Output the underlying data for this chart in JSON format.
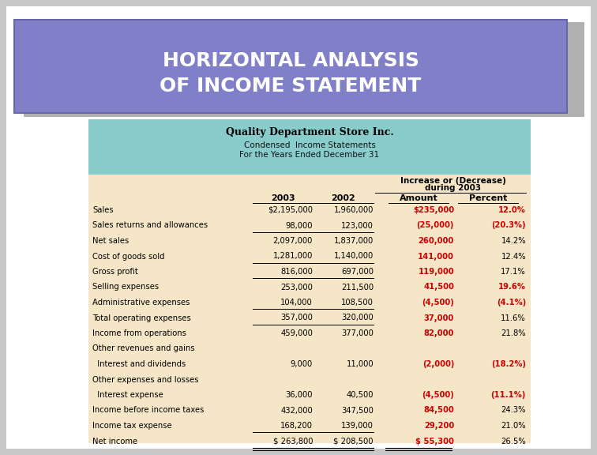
{
  "title_line1": "HORIZONTAL ANALYSIS",
  "title_line2": "OF INCOME STATEMENT",
  "title_bg": "#8080c8",
  "title_text_color": "#ffffff",
  "title_shadow_color": "#a0a0d8",
  "company_name": "Quality Department Store Inc.",
  "subtitle1": "Condensed  Income Statements",
  "subtitle2": "For the Years Ended December 31",
  "header_bg": "#88cccc",
  "table_bg": "#f5e6c8",
  "outer_bg": "#c8c8c8",
  "page_bg": "#ffffff",
  "increase_header1": "Increase or (Decrease)",
  "increase_header2": "during 2003",
  "rows": [
    {
      "label": "Sales",
      "val2003": "$2,195,000",
      "val2002": "1,960,000",
      "amount": "$235,000",
      "percent": "12.0%",
      "red_amount": true,
      "red_percent": true,
      "indent": 0,
      "ul2003": false,
      "ul2002": false,
      "ul_amt": false,
      "dbl": false
    },
    {
      "label": "Sales returns and allowances",
      "val2003": "98,000",
      "val2002": "123,000",
      "amount": "(25,000)",
      "percent": "(20.3%)",
      "red_amount": true,
      "red_percent": true,
      "indent": 0,
      "ul2003": true,
      "ul2002": true,
      "ul_amt": false,
      "dbl": false
    },
    {
      "label": "Net sales",
      "val2003": "2,097,000",
      "val2002": "1,837,000",
      "amount": "260,000",
      "percent": "14.2%",
      "red_amount": true,
      "red_percent": false,
      "indent": 0,
      "ul2003": false,
      "ul2002": false,
      "ul_amt": false,
      "dbl": false
    },
    {
      "label": "Cost of goods sold",
      "val2003": "1,281,000",
      "val2002": "1,140,000",
      "amount": "141,000",
      "percent": "12.4%",
      "red_amount": true,
      "red_percent": false,
      "indent": 0,
      "ul2003": true,
      "ul2002": true,
      "ul_amt": false,
      "dbl": false
    },
    {
      "label": "Gross profit",
      "val2003": "816,000",
      "val2002": "697,000",
      "amount": "119,000",
      "percent": "17.1%",
      "red_amount": true,
      "red_percent": false,
      "indent": 0,
      "ul2003": true,
      "ul2002": true,
      "ul_amt": false,
      "dbl": false
    },
    {
      "label": "Selling expenses",
      "val2003": "253,000",
      "val2002": "211,500",
      "amount": "41,500",
      "percent": "19.6%",
      "red_amount": true,
      "red_percent": true,
      "indent": 0,
      "ul2003": false,
      "ul2002": false,
      "ul_amt": false,
      "dbl": false
    },
    {
      "label": "Administrative expenses",
      "val2003": "104,000",
      "val2002": "108,500",
      "amount": "(4,500)",
      "percent": "(4.1%)",
      "red_amount": true,
      "red_percent": true,
      "indent": 0,
      "ul2003": true,
      "ul2002": true,
      "ul_amt": false,
      "dbl": false
    },
    {
      "label": "Total operating expenses",
      "val2003": "357,000",
      "val2002": "320,000",
      "amount": "37,000",
      "percent": "11.6%",
      "red_amount": true,
      "red_percent": false,
      "indent": 0,
      "ul2003": true,
      "ul2002": true,
      "ul_amt": false,
      "dbl": false
    },
    {
      "label": "Income from operations",
      "val2003": "459,000",
      "val2002": "377,000",
      "amount": "82,000",
      "percent": "21.8%",
      "red_amount": true,
      "red_percent": false,
      "indent": 0,
      "ul2003": false,
      "ul2002": false,
      "ul_amt": false,
      "dbl": false
    },
    {
      "label": "Other revenues and gains",
      "val2003": "",
      "val2002": "",
      "amount": "",
      "percent": "",
      "red_amount": false,
      "red_percent": false,
      "indent": 0,
      "ul2003": false,
      "ul2002": false,
      "ul_amt": false,
      "dbl": false
    },
    {
      "label": "  Interest and dividends",
      "val2003": "9,000",
      "val2002": "11,000",
      "amount": "(2,000)",
      "percent": "(18.2%)",
      "red_amount": true,
      "red_percent": true,
      "indent": 1,
      "ul2003": false,
      "ul2002": false,
      "ul_amt": false,
      "dbl": false
    },
    {
      "label": "Other expenses and losses",
      "val2003": "",
      "val2002": "",
      "amount": "",
      "percent": "",
      "red_amount": false,
      "red_percent": false,
      "indent": 0,
      "ul2003": false,
      "ul2002": false,
      "ul_amt": false,
      "dbl": false
    },
    {
      "label": "  Interest expense",
      "val2003": "36,000",
      "val2002": "40,500",
      "amount": "(4,500)",
      "percent": "(11.1%)",
      "red_amount": true,
      "red_percent": true,
      "indent": 1,
      "ul2003": false,
      "ul2002": false,
      "ul_amt": false,
      "dbl": false
    },
    {
      "label": "Income before income taxes",
      "val2003": "432,000",
      "val2002": "347,500",
      "amount": "84,500",
      "percent": "24.3%",
      "red_amount": true,
      "red_percent": false,
      "indent": 0,
      "ul2003": false,
      "ul2002": false,
      "ul_amt": false,
      "dbl": false
    },
    {
      "label": "Income tax expense",
      "val2003": "168,200",
      "val2002": "139,000",
      "amount": "29,200",
      "percent": "21.0%",
      "red_amount": true,
      "red_percent": false,
      "indent": 0,
      "ul2003": true,
      "ul2002": true,
      "ul_amt": false,
      "dbl": false
    },
    {
      "label": "Net income",
      "val2003": "$ 263,800",
      "val2002": "$ 208,500",
      "amount": "$ 55,300",
      "percent": "26.5%",
      "red_amount": true,
      "red_percent": false,
      "indent": 0,
      "ul2003": false,
      "ul2002": false,
      "ul_amt": false,
      "dbl": true
    }
  ]
}
